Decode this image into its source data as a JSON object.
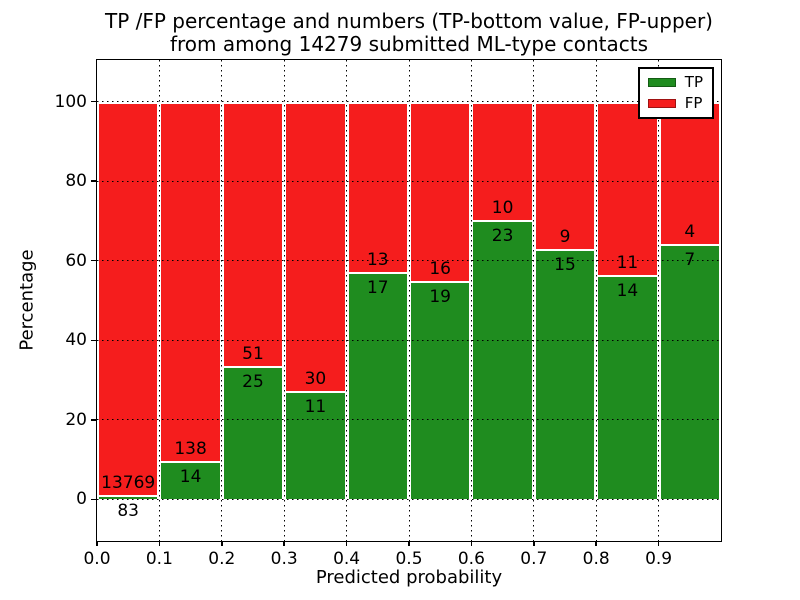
{
  "chart_data": {
    "type": "bar",
    "stacked": true,
    "title_line1": "TP /FP percentage and numbers (TP-bottom value, FP-upper)",
    "title_line2": "from among 14279 submitted ML-type contacts",
    "total_submitted": 14279,
    "xlabel": "Predicted probability",
    "ylabel": "Percentage",
    "xlim": [
      0.0,
      1.0
    ],
    "ylim": [
      -10.5,
      110.5
    ],
    "bin_width": 0.1,
    "xticks": [
      0.0,
      0.1,
      0.2,
      0.3,
      0.4,
      0.5,
      0.6,
      0.7,
      0.8,
      0.9
    ],
    "xtick_labels": [
      "0.0",
      "0.1",
      "0.2",
      "0.3",
      "0.4",
      "0.5",
      "0.6",
      "0.7",
      "0.8",
      "0.9"
    ],
    "yticks": [
      0,
      20,
      40,
      60,
      80,
      100
    ],
    "ytick_labels": [
      "0",
      "20",
      "40",
      "60",
      "80",
      "100"
    ],
    "series": [
      {
        "name": "TP",
        "color": "#1f8c1f",
        "values": [
          83,
          14,
          25,
          11,
          17,
          19,
          23,
          15,
          14,
          7
        ]
      },
      {
        "name": "FP",
        "color": "#f51d1d",
        "values": [
          13769,
          138,
          51,
          30,
          13,
          16,
          10,
          9,
          11,
          4
        ]
      }
    ],
    "legend": {
      "position": "upper right",
      "entries": [
        "TP",
        "FP"
      ]
    },
    "grid": {
      "style": "dotted",
      "color": "#000000"
    },
    "bar_edge_color": "#ffffff",
    "background": "#ffffff"
  }
}
